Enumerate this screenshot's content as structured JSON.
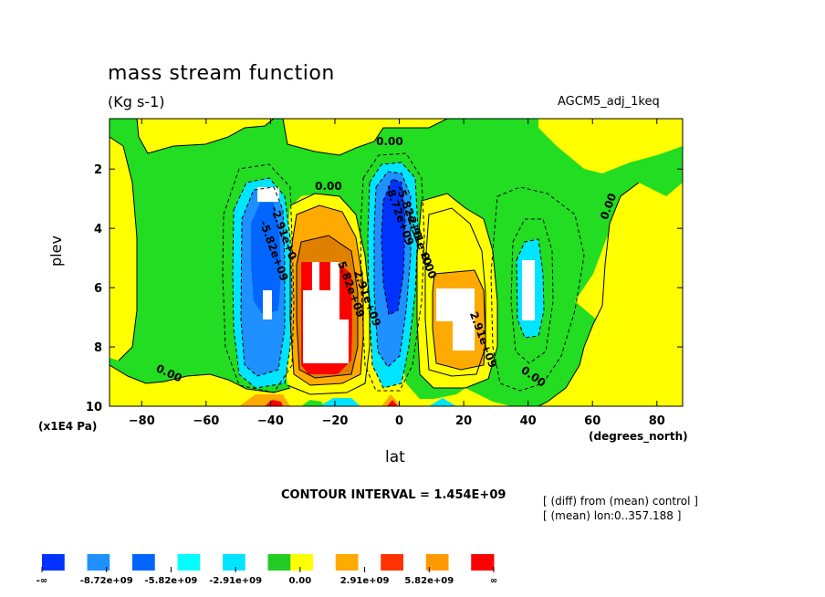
{
  "chart_data": {
    "type": "heatmap",
    "title": "mass stream function",
    "units": "(Kg s-1)",
    "case": "AGCM5_adj_1keq",
    "xlabel": "lat",
    "x_unit": "(degrees_north)",
    "ylabel": "plev",
    "y_unit": "(x1E4 Pa)",
    "xlim": [
      -90,
      88
    ],
    "ylim": [
      0.3,
      10
    ],
    "y_inverted": true,
    "x_ticks": [
      -80,
      -60,
      -40,
      -20,
      0,
      20,
      40,
      60,
      80
    ],
    "y_ticks": [
      2,
      4,
      6,
      8,
      10
    ],
    "contour_interval_text": "CONTOUR INTERVAL = 1.454E+09",
    "subtitle_lines": [
      "[ (diff) from (mean) control ]",
      "[ (mean) lon:0..357.188 ]"
    ],
    "colorbar_labels": [
      "-∞",
      "-8.72e+09",
      "-5.82e+09",
      "-2.91e+09",
      "0.00",
      "2.91e+09",
      "5.82e+09",
      "∞"
    ],
    "colorbar_colors": [
      "#0033ff",
      "#ffffff",
      "#1e90ff",
      "#ffffff",
      "#0066ff",
      "#ffffff",
      "#00ffff",
      "#ffffff",
      "#00e5ff",
      "#ffffff",
      "#22cc22",
      "#ffff00",
      "#ffffff",
      "#ffaa00",
      "#ffffff",
      "#ff3300",
      "#ffffff",
      "#ff9900",
      "#ffffff",
      "#ff0000"
    ],
    "colors": {
      "yellow": "#ffff00",
      "green": "#22dd22",
      "blue": "#0066ff",
      "cyan": "#00e5ff",
      "lightblue": "#1e90ff",
      "orange": "#ffaa00",
      "red": "#ff0000",
      "darkorange": "#e08000"
    },
    "contour_labels": [
      {
        "text": "0.00",
        "lat": -3,
        "plev": 1.2
      },
      {
        "text": "0.00",
        "lat": -22,
        "plev": 2.7
      },
      {
        "text": "0.00",
        "lat": -72,
        "plev": 9.0
      },
      {
        "text": "0.00",
        "lat": 41,
        "plev": 9.1
      },
      {
        "text": "0.00",
        "lat": 66,
        "plev": 3.3
      },
      {
        "text": "0.00",
        "lat": 8,
        "plev": 5.3
      },
      {
        "text": "-5.82e+09",
        "lat": -40,
        "plev": 4.8
      },
      {
        "text": "-2.91e+0",
        "lat": -37,
        "plev": 4.2
      },
      {
        "text": "5.82e+09",
        "lat": -16,
        "plev": 6.1
      },
      {
        "text": "2.91e+09",
        "lat": -11,
        "plev": 6.4
      },
      {
        "text": "-8.72e+09",
        "lat": -1,
        "plev": 3.6
      },
      {
        "text": "-5.82e+0",
        "lat": 2,
        "plev": 3.5
      },
      {
        "text": "-2.91e+0",
        "lat": 5,
        "plev": 4.4
      },
      {
        "text": "2.91e+09",
        "lat": 25,
        "plev": 7.8
      }
    ],
    "features": [
      {
        "name": "southern-negative-cell",
        "lat_range": [
          -46,
          -32
        ],
        "plev_range": [
          2.3,
          9.2
        ],
        "min_level": "-5.82e+09"
      },
      {
        "name": "southern-positive-cell",
        "lat_range": [
          -30,
          -8
        ],
        "plev_range": [
          3.0,
          9.6
        ],
        "max_level": "5.82e+09"
      },
      {
        "name": "equatorial-negative-cell",
        "lat_range": [
          -8,
          8
        ],
        "plev_range": [
          1.6,
          9.0
        ],
        "min_level": "-8.72e+09"
      },
      {
        "name": "northern-positive-cell",
        "lat_range": [
          8,
          32
        ],
        "plev_range": [
          3.5,
          9.2
        ],
        "max_level": "2.91e+09"
      },
      {
        "name": "northern-negative-cell",
        "lat_range": [
          35,
          50
        ],
        "plev_range": [
          3.8,
          9.0
        ],
        "min_level": "-2.91e+09"
      }
    ]
  }
}
